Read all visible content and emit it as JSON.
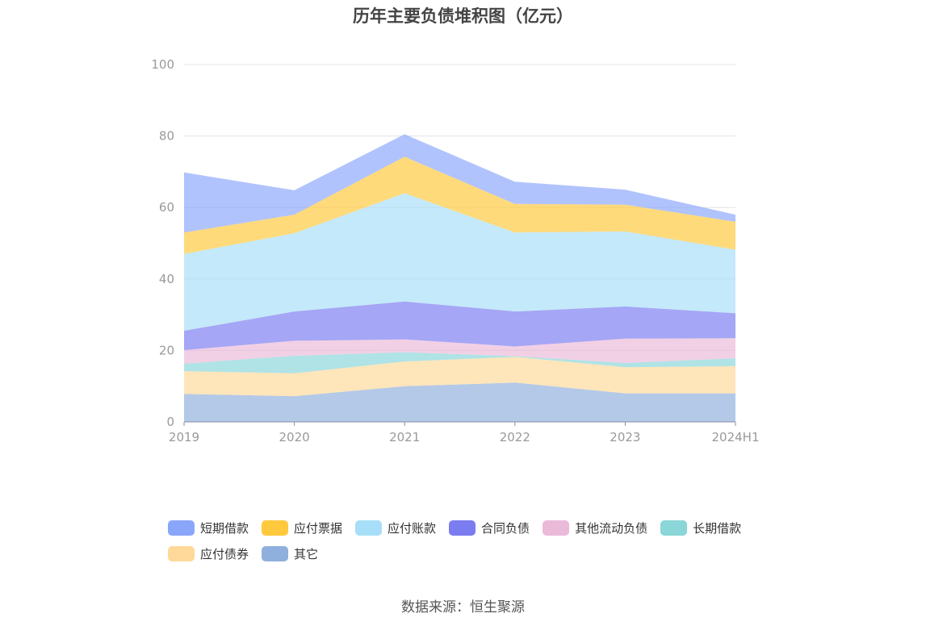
{
  "chart_data": {
    "type": "area",
    "stacked": true,
    "title": "历年主要负债堆积图（亿元）",
    "categories": [
      "2019",
      "2020",
      "2021",
      "2022",
      "2023",
      "2024H1"
    ],
    "ylim": [
      0,
      100
    ],
    "yticks": [
      "0",
      "20",
      "40",
      "60",
      "80",
      "100"
    ],
    "grid": true,
    "legend_position": "bottom",
    "series": [
      {
        "name": "其它",
        "color": "#8fb0dc",
        "values": [
          7.8,
          7.2,
          10.0,
          11.0,
          8.0,
          8.0
        ]
      },
      {
        "name": "应付债券",
        "color": "#ffd99a",
        "values": [
          6.4,
          6.4,
          6.9,
          7.2,
          7.3,
          7.6
        ]
      },
      {
        "name": "长期借款",
        "color": "#8ad6d8",
        "values": [
          2.1,
          4.9,
          2.6,
          0.2,
          1.2,
          2.2
        ]
      },
      {
        "name": "其他流动负债",
        "color": "#ebbad9",
        "values": [
          3.8,
          4.2,
          3.6,
          2.7,
          6.8,
          5.6
        ]
      },
      {
        "name": "合同负债",
        "color": "#7b7cf0",
        "values": [
          5.4,
          8.2,
          10.6,
          9.8,
          9.0,
          7.0
        ]
      },
      {
        "name": "应付账款",
        "color": "#a8dff8",
        "values": [
          21.5,
          21.9,
          30.3,
          22.1,
          21.0,
          17.8
        ]
      },
      {
        "name": "应付票据",
        "color": "#ffc93d",
        "values": [
          6.0,
          5.2,
          10.2,
          8.0,
          7.5,
          7.8
        ]
      },
      {
        "name": "短期借款",
        "color": "#8aa6fb",
        "values": [
          16.8,
          6.8,
          6.3,
          6.2,
          4.2,
          2.0
        ]
      }
    ],
    "legend_order": [
      "短期借款",
      "应付票据",
      "应付账款",
      "合同负债",
      "其他流动负债",
      "长期借款",
      "应付债券",
      "其它"
    ]
  },
  "source": "数据来源：恒生聚源"
}
